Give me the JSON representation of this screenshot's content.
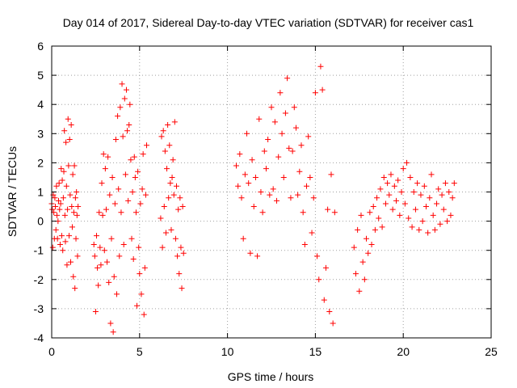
{
  "chart_data": {
    "type": "scatter",
    "title": "Day 014 of 2017, Sidereal Day-to-day VTEC variation (SDTVAR) for receiver cas1",
    "xlabel": "GPS time / hours",
    "ylabel": "SDTVAR / TECUs",
    "xlim": [
      0,
      25
    ],
    "ylim": [
      -4,
      6
    ],
    "xticks": [
      0,
      5,
      10,
      15,
      20,
      25
    ],
    "yticks": [
      -4,
      -3,
      -2,
      -1,
      0,
      1,
      2,
      3,
      4,
      5,
      6
    ],
    "xtick_labels": [
      "0",
      "5",
      "10",
      "15",
      "20",
      "25"
    ],
    "ytick_labels": [
      "-4",
      "-3",
      "-2",
      "-1",
      "0",
      "1",
      "2",
      "3",
      "4",
      "5",
      "6"
    ],
    "grid": true,
    "marker": "+",
    "colors": {
      "series": "#ff0000",
      "grid": "#a0a0a0",
      "axis": "#000000"
    },
    "series": [
      {
        "name": "SDTVAR",
        "x": [
          0.0,
          0.03,
          0.06,
          0.09,
          0.12,
          0.15,
          0.18,
          0.21,
          0.24,
          0.27,
          0.3,
          0.33,
          0.36,
          0.39,
          0.42,
          0.45,
          0.48,
          0.51,
          0.54,
          0.57,
          0.6,
          0.63,
          0.66,
          0.69,
          0.72,
          0.75,
          0.78,
          0.81,
          0.84,
          0.87,
          0.9,
          0.93,
          0.96,
          0.99,
          1.02,
          1.05,
          1.08,
          1.11,
          1.14,
          1.17,
          1.2,
          1.23,
          1.26,
          1.29,
          1.32,
          1.35,
          1.38,
          1.41,
          1.44,
          1.47,
          1.5,
          2.4,
          2.45,
          2.5,
          2.55,
          2.6,
          2.65,
          2.7,
          2.75,
          2.8,
          2.85,
          2.9,
          2.95,
          3.0,
          3.05,
          3.1,
          3.15,
          3.2,
          3.25,
          3.3,
          3.35,
          3.4,
          3.45,
          3.5,
          3.55,
          3.6,
          3.65,
          3.7,
          3.75,
          3.8,
          3.85,
          3.9,
          3.95,
          4.0,
          4.05,
          4.1,
          4.15,
          4.2,
          4.25,
          4.3,
          4.35,
          4.4,
          4.45,
          4.5,
          4.55,
          4.6,
          4.65,
          4.7,
          4.75,
          4.8,
          4.85,
          4.9,
          4.95,
          5.0,
          5.05,
          5.1,
          5.15,
          5.2,
          5.25,
          5.3,
          5.35,
          5.4,
          6.2,
          6.25,
          6.3,
          6.35,
          6.4,
          6.45,
          6.5,
          6.55,
          6.6,
          6.65,
          6.7,
          6.75,
          6.8,
          6.85,
          6.9,
          6.95,
          7.0,
          7.05,
          7.1,
          7.15,
          7.2,
          7.25,
          7.3,
          7.35,
          7.4,
          7.45,
          7.5,
          10.5,
          10.6,
          10.7,
          10.8,
          10.9,
          11.0,
          11.1,
          11.2,
          11.3,
          11.4,
          11.5,
          11.6,
          11.7,
          11.8,
          11.9,
          12.0,
          12.1,
          12.2,
          12.3,
          12.4,
          12.5,
          12.6,
          12.7,
          12.8,
          12.9,
          13.0,
          13.1,
          13.2,
          13.3,
          13.4,
          13.5,
          13.6,
          13.7,
          13.8,
          13.9,
          14.0,
          14.1,
          14.2,
          14.3,
          14.4,
          14.5,
          14.6,
          14.7,
          14.8,
          14.9,
          15.0,
          15.1,
          15.2,
          15.3,
          15.4,
          15.5,
          15.6,
          15.7,
          15.8,
          15.9,
          16.0,
          16.1,
          17.2,
          17.3,
          17.4,
          17.5,
          17.6,
          17.7,
          17.8,
          17.9,
          18.0,
          18.1,
          18.2,
          18.3,
          18.4,
          18.5,
          18.6,
          18.7,
          18.8,
          18.9,
          19.0,
          19.1,
          19.2,
          19.3,
          19.4,
          19.5,
          19.6,
          19.7,
          19.8,
          19.9,
          20.0,
          20.1,
          20.2,
          20.3,
          20.4,
          20.5,
          20.6,
          20.7,
          20.8,
          20.9,
          21.0,
          21.1,
          21.2,
          21.3,
          21.4,
          21.5,
          21.6,
          21.7,
          21.8,
          21.9,
          22.0,
          22.1,
          22.2,
          22.3,
          22.4,
          22.5,
          22.6,
          22.7,
          22.8,
          22.9
        ],
        "y": [
          0.6,
          0.4,
          -0.9,
          0.9,
          0.3,
          -0.6,
          0.8,
          0.5,
          -0.3,
          1.2,
          0.2,
          -0.6,
          0.0,
          0.7,
          1.3,
          0.4,
          -0.8,
          0.6,
          1.8,
          -0.5,
          1.4,
          -1.0,
          0.8,
          1.7,
          3.1,
          0.2,
          -0.7,
          2.7,
          1.2,
          -1.5,
          0.4,
          3.5,
          1.9,
          -0.5,
          2.8,
          0.9,
          -1.4,
          3.3,
          0.5,
          -0.2,
          1.6,
          -1.9,
          0.3,
          1.9,
          -2.3,
          0.8,
          -0.6,
          1.0,
          0.2,
          -1.2,
          0.5,
          -0.8,
          -1.2,
          -3.1,
          -0.5,
          -1.6,
          -2.2,
          0.3,
          -0.9,
          -1.5,
          1.3,
          0.2,
          2.3,
          -1.0,
          1.8,
          0.4,
          -1.4,
          2.2,
          -2.1,
          0.9,
          -3.5,
          -0.6,
          1.5,
          -3.8,
          -1.9,
          0.6,
          2.8,
          -2.5,
          3.6,
          1.1,
          -1.2,
          3.9,
          0.3,
          4.7,
          2.9,
          -0.8,
          4.2,
          1.6,
          4.5,
          3.1,
          0.7,
          3.3,
          4.0,
          2.1,
          -0.6,
          1.0,
          -1.3,
          2.2,
          1.5,
          0.3,
          -2.9,
          1.7,
          -0.9,
          -1.8,
          0.6,
          -2.5,
          1.1,
          2.3,
          -3.2,
          -1.6,
          0.9,
          2.6,
          0.1,
          2.9,
          -0.9,
          3.1,
          0.5,
          2.4,
          -0.4,
          1.8,
          3.3,
          0.8,
          2.6,
          1.3,
          -0.3,
          1.5,
          2.1,
          0.9,
          3.4,
          -0.6,
          1.2,
          -1.2,
          0.4,
          -1.8,
          0.8,
          -0.9,
          -2.3,
          0.5,
          -1.1,
          1.9,
          1.2,
          2.3,
          0.8,
          -0.6,
          1.6,
          3.0,
          1.3,
          -1.1,
          2.1,
          0.5,
          1.5,
          -1.2,
          3.5,
          1.0,
          0.3,
          2.4,
          1.8,
          2.8,
          0.9,
          3.9,
          1.1,
          3.4,
          0.7,
          2.2,
          4.4,
          3.0,
          1.5,
          3.7,
          4.9,
          2.5,
          0.8,
          2.4,
          3.9,
          3.2,
          0.9,
          1.7,
          2.6,
          0.3,
          -0.8,
          1.2,
          2.9,
          1.5,
          -0.4,
          0.8,
          4.4,
          -1.2,
          -2.0,
          5.3,
          4.5,
          -2.7,
          -1.6,
          0.4,
          -3.1,
          1.6,
          -3.5,
          0.3,
          -0.9,
          -1.8,
          -0.3,
          -2.4,
          0.2,
          -1.4,
          -2.0,
          -0.6,
          -1.1,
          0.3,
          -0.8,
          0.5,
          -0.3,
          0.8,
          0.1,
          1.1,
          -0.2,
          1.5,
          0.6,
          1.3,
          0.9,
          1.6,
          0.4,
          1.2,
          0.7,
          1.4,
          0.2,
          1.0,
          1.8,
          0.6,
          2.0,
          0.1,
          1.5,
          -0.2,
          1.0,
          0.4,
          1.3,
          -0.3,
          0.9,
          0.0,
          1.2,
          0.5,
          -0.4,
          0.8,
          1.6,
          0.2,
          -0.3,
          0.6,
          1.1,
          -0.1,
          0.9,
          0.4,
          1.3,
          0.0,
          1.0,
          0.2,
          0.8,
          1.3
        ]
      }
    ]
  }
}
